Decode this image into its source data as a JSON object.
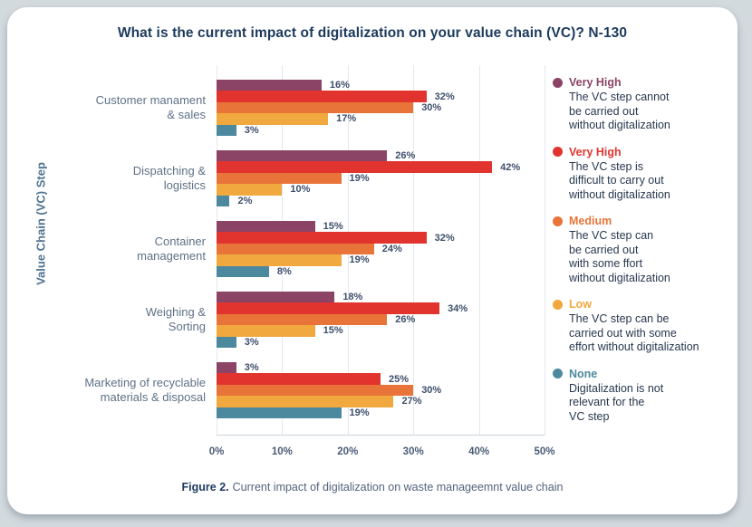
{
  "page": {
    "title": "What is the current impact of digitalization on your value chain (VC)? N-130",
    "caption": {
      "prefix": "Figure 2.",
      "text": "Current impact of digitalization on waste manageemnt value chain"
    }
  },
  "chart_data": {
    "type": "bar",
    "orientation": "horizontal",
    "title": "What is the current impact of digitalization on your value chain (VC)? N-130",
    "xlabel": "",
    "ylabel": "Value Chain (VC) Step",
    "xlim": [
      0,
      50
    ],
    "x_ticks": [
      "0%",
      "10%",
      "20%",
      "30%",
      "40%",
      "50%"
    ],
    "grid": true,
    "legend_position": "right",
    "categories": [
      "Customer manament\n& sales",
      "Dispatching &\nlogistics",
      "Container\nmanagement",
      "Weighing &\nSorting",
      "Marketing of recyclable\nmaterials & disposal"
    ],
    "series": [
      {
        "name": "Very High",
        "color": "#8c4466",
        "values": [
          16,
          26,
          15,
          18,
          3
        ]
      },
      {
        "name": "Very High",
        "color": "#e2342f",
        "values": [
          32,
          42,
          32,
          34,
          25
        ]
      },
      {
        "name": "Medium",
        "color": "#e97439",
        "values": [
          30,
          19,
          24,
          26,
          30
        ]
      },
      {
        "name": "Low",
        "color": "#f1a83e",
        "values": [
          17,
          10,
          19,
          15,
          27
        ]
      },
      {
        "name": "None",
        "color": "#4d899e",
        "values": [
          3,
          2,
          8,
          3,
          19
        ]
      }
    ]
  },
  "legend": {
    "items": [
      {
        "label": "Very High",
        "color": "#8c4466",
        "description": "The VC step cannot\nbe carried out\nwithout digitalization"
      },
      {
        "label": "Very High",
        "color": "#e2342f",
        "description": "The VC step is\ndifficult to carry out\nwithout digitalization"
      },
      {
        "label": "Medium",
        "color": "#e97439",
        "description": "The VC step can\nbe carried out\nwith some ffort\nwithout digitalization"
      },
      {
        "label": "Low",
        "color": "#f1a83e",
        "description": "The VC step can be\ncarried out with some\neffort without digitalization"
      },
      {
        "label": "None",
        "color": "#4d899e",
        "description": "Digitalization is not\nrelevant for the\nVC step"
      }
    ]
  }
}
